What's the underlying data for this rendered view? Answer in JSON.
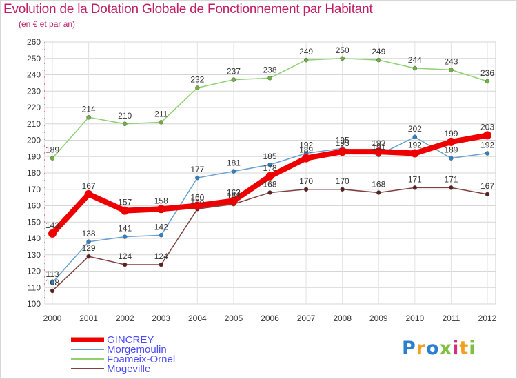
{
  "title": "Evolution de la Dotation Globale de Fonctionnement par Habitant",
  "subtitle": "(en € et par an)",
  "logo": {
    "chars": [
      "P",
      "r",
      "o",
      "x",
      "i",
      "t",
      "i"
    ],
    "colors": [
      "#2a7fd0",
      "#f0a020",
      "#2a7fd0",
      "#80c040",
      "#d03080",
      "#f0a020",
      "#80c040"
    ]
  },
  "chart_data": {
    "type": "line",
    "title": "Evolution de la Dotation Globale de Fonctionnement par Habitant",
    "subtitle": "(en € et par an)",
    "x": [
      "2000",
      "2001",
      "2002",
      "2003",
      "2004",
      "2005",
      "2006",
      "2007",
      "2008",
      "2009",
      "2010",
      "2011",
      "2012"
    ],
    "ylim": [
      100,
      260
    ],
    "yticks": [
      100,
      110,
      120,
      130,
      140,
      150,
      160,
      170,
      180,
      190,
      200,
      210,
      220,
      230,
      240,
      250,
      260
    ],
    "grid": true,
    "legend": "bottom-left",
    "series": [
      {
        "name": "Foameix-Ornel",
        "values": [
          189,
          214,
          210,
          211,
          232,
          237,
          238,
          249,
          250,
          249,
          244,
          243,
          236
        ],
        "color": "#90d070",
        "marker": "#70b040",
        "width": 1.5,
        "labels": [
          "189",
          "214",
          "210",
          "211",
          "232",
          "237",
          "238",
          "249",
          "250",
          "249",
          "244",
          "243",
          "236"
        ]
      },
      {
        "name": "Mogeville",
        "values": [
          108,
          129,
          124,
          124,
          158,
          161,
          168,
          170,
          170,
          168,
          171,
          171,
          167
        ],
        "color": "#804040",
        "marker": "#602020",
        "width": 1.5,
        "labels": [
          "108",
          "129",
          "124",
          "124",
          "158",
          "161",
          "168",
          "170",
          "170",
          "168",
          "171",
          "171",
          "167"
        ]
      },
      {
        "name": "Morgemoulin",
        "values": [
          113,
          138,
          141,
          142,
          177,
          181,
          185,
          192,
          195,
          191,
          202,
          189,
          192
        ],
        "color": "#6aa0d0",
        "marker": "#3080c8",
        "width": 1.5,
        "labels": [
          "113",
          "138",
          "141",
          "142",
          "177",
          "181",
          "185",
          "192",
          "195",
          "191",
          "202",
          "189",
          "192"
        ]
      },
      {
        "name": "GINCREY",
        "values": [
          143,
          167,
          157,
          158,
          160,
          163,
          178,
          189,
          193,
          193,
          192,
          199,
          203
        ],
        "color": "#ee0000",
        "marker": "#ee0000",
        "width": 8,
        "labels": [
          "143",
          "167",
          "157",
          "158",
          "160",
          "163",
          "178",
          "189",
          "193",
          "193",
          "192",
          "199",
          "203"
        ]
      }
    ],
    "legend_order": [
      "GINCREY",
      "Morgemoulin",
      "Foameix-Ornel",
      "Mogeville"
    ]
  }
}
